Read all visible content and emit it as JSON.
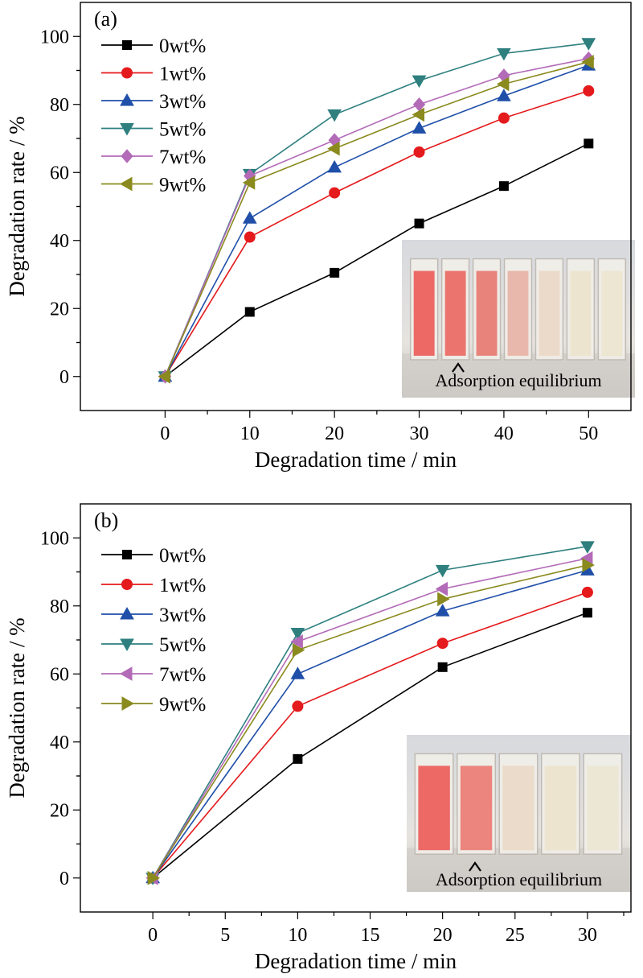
{
  "chart_data": [
    {
      "type": "line",
      "panel_label": "(a)",
      "xlabel": "Degradation time / min",
      "ylabel": "Degradation rate / %",
      "xlim": [
        -10,
        55
      ],
      "ylim": [
        -10,
        110
      ],
      "xticks": [
        0,
        10,
        20,
        30,
        40,
        50
      ],
      "yticks": [
        0,
        20,
        40,
        60,
        80,
        100
      ],
      "x": [
        0,
        10,
        20,
        30,
        40,
        50
      ],
      "legend_position": "top-left",
      "series": [
        {
          "name": "0wt%",
          "color": "#000000",
          "marker": "square",
          "values": [
            0,
            19,
            30.5,
            45,
            56,
            68.5
          ]
        },
        {
          "name": "1wt%",
          "color": "#e41a1c",
          "marker": "circle",
          "values": [
            0,
            41,
            54,
            66,
            76,
            84
          ]
        },
        {
          "name": "3wt%",
          "color": "#1f4fa8",
          "marker": "triangle-up",
          "values": [
            0,
            46.5,
            61.5,
            73,
            82.5,
            91.5
          ]
        },
        {
          "name": "5wt%",
          "color": "#2f7f7f",
          "marker": "triangle-down",
          "values": [
            0,
            59.5,
            77,
            87,
            95,
            98
          ]
        },
        {
          "name": "7wt%",
          "color": "#b36bb8",
          "marker": "diamond",
          "values": [
            0,
            59,
            69.5,
            80,
            88.5,
            93.5
          ]
        },
        {
          "name": "9wt%",
          "color": "#8a8a1f",
          "marker": "triangle-left",
          "values": [
            0,
            57,
            67,
            77,
            86,
            92.5
          ]
        }
      ],
      "inset": {
        "caption": "Adsorption equilibrium",
        "cuvettes": 7
      }
    },
    {
      "type": "line",
      "panel_label": "(b)",
      "xlabel": "Degradation time / min",
      "ylabel": "Degradation rate / %",
      "xlim": [
        -5,
        33
      ],
      "ylim": [
        -10,
        110
      ],
      "xticks": [
        0,
        5,
        10,
        15,
        20,
        25,
        30
      ],
      "yticks": [
        0,
        20,
        40,
        60,
        80,
        100
      ],
      "x": [
        0,
        10,
        20,
        30
      ],
      "legend_position": "top-left",
      "series": [
        {
          "name": "0wt%",
          "color": "#000000",
          "marker": "square",
          "values": [
            0,
            35,
            62,
            78
          ]
        },
        {
          "name": "1wt%",
          "color": "#e41a1c",
          "marker": "circle",
          "values": [
            0,
            50.5,
            69,
            84
          ]
        },
        {
          "name": "3wt%",
          "color": "#1f4fa8",
          "marker": "triangle-up",
          "values": [
            0,
            60,
            78.5,
            90.5
          ]
        },
        {
          "name": "5wt%",
          "color": "#2f7f7f",
          "marker": "triangle-down",
          "values": [
            0,
            72,
            90.5,
            97.5
          ]
        },
        {
          "name": "7wt%",
          "color": "#b36bb8",
          "marker": "triangle-left",
          "values": [
            0,
            69.5,
            85,
            94
          ]
        },
        {
          "name": "9wt%",
          "color": "#8a8a1f",
          "marker": "triangle-right",
          "values": [
            0,
            67,
            82,
            92
          ]
        }
      ],
      "inset": {
        "caption": "Adsorption equilibrium",
        "cuvettes": 5
      }
    }
  ]
}
